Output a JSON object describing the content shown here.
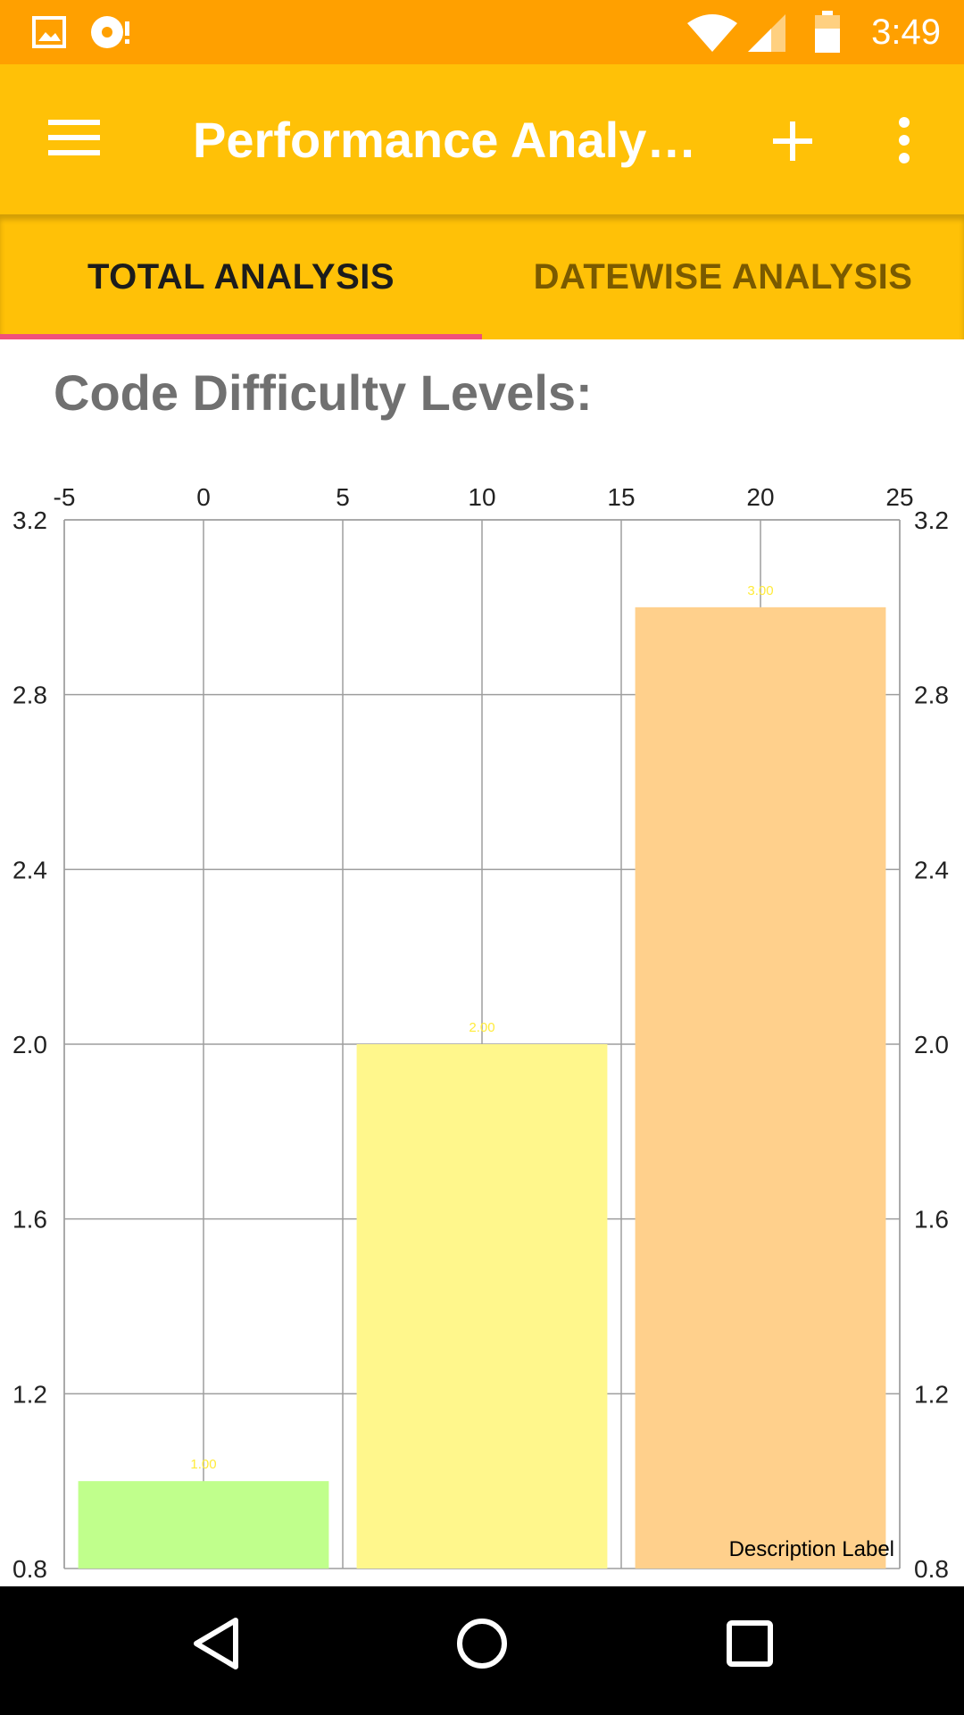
{
  "status_bar": {
    "time": "3:49",
    "icons": [
      "image-icon",
      "sync-disc-icon",
      "wifi-icon",
      "cell-signal-icon",
      "battery-icon"
    ]
  },
  "app_bar": {
    "title": "Performance Analy…",
    "icons": [
      "menu-icon",
      "add-icon",
      "more-vert-icon"
    ]
  },
  "tabs": [
    {
      "label": "TOTAL ANALYSIS",
      "active": true
    },
    {
      "label": "DATEWISE ANALYSIS",
      "active": false
    }
  ],
  "section_title": "Code Difficulty Levels:",
  "nav_bar": {
    "icons": [
      "back-icon",
      "home-icon",
      "recents-icon"
    ]
  },
  "colors": {
    "status_bar": "#FFA000",
    "app_bar": "#FFC107",
    "tab_indicator": "#F0507A",
    "value_label": "#FFEB3B"
  },
  "chart_data": {
    "type": "bar",
    "x": [
      0,
      10,
      20
    ],
    "values": [
      1.0,
      2.0,
      3.0
    ],
    "value_labels": [
      "1.00",
      "2.00",
      "3.00"
    ],
    "bar_colors": [
      "#C0FF8C",
      "#FFF78C",
      "#FFD08C"
    ],
    "bar_width": 9,
    "xlim": [
      -5,
      25
    ],
    "xticks": [
      "-5",
      "0",
      "5",
      "10",
      "15",
      "20",
      "25"
    ],
    "ylim": [
      0.8,
      3.2
    ],
    "yticks": [
      "0.8",
      "1.2",
      "1.6",
      "2.0",
      "2.4",
      "2.8",
      "3.2"
    ],
    "x_axis_position": "top",
    "y_axis": "both sides",
    "grid": true,
    "description": "Description Label"
  }
}
